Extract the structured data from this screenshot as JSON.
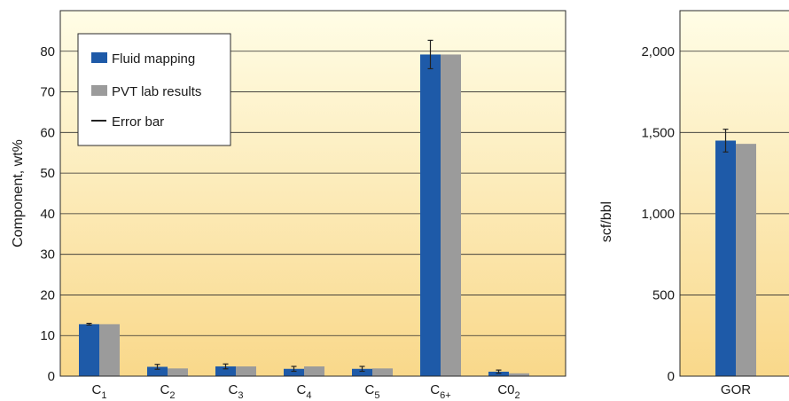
{
  "colors": {
    "fluid_mapping": "#1e5aa8",
    "pvt_lab": "#9b9b9b",
    "error_bar": "#222222",
    "bg_top": "#fffde6",
    "bg_bottom": "#f9d88a",
    "grid": "#2a2a2a"
  },
  "chart_data": [
    {
      "type": "bar",
      "ylabel": "Component, wt%",
      "ylim": [
        0,
        90
      ],
      "yticks": [
        "0",
        "10",
        "20",
        "30",
        "40",
        "50",
        "60",
        "70",
        "80"
      ],
      "ytick_values": [
        0,
        10,
        20,
        30,
        40,
        50,
        60,
        70,
        80
      ],
      "grid": true,
      "legend_position": "top-left",
      "categories": [
        {
          "base": "C",
          "sub": "1"
        },
        {
          "base": "C",
          "sub": "2"
        },
        {
          "base": "C",
          "sub": "3"
        },
        {
          "base": "C",
          "sub": "4"
        },
        {
          "base": "C",
          "sub": "5"
        },
        {
          "base": "C",
          "sub": "6+"
        },
        {
          "base": "C0",
          "sub": "2"
        }
      ],
      "series": [
        {
          "name": "Fluid mapping",
          "values": [
            12.8,
            2.3,
            2.4,
            1.8,
            1.8,
            79.2,
            1.1
          ],
          "error": [
            0.2,
            0.6,
            0.6,
            0.6,
            0.6,
            3.5,
            0.4
          ]
        },
        {
          "name": "PVT lab results",
          "values": [
            12.8,
            1.9,
            2.4,
            2.4,
            1.9,
            79.2,
            0.7
          ]
        }
      ],
      "legend": [
        "Fluid mapping",
        "PVT lab results",
        "Error bar"
      ]
    },
    {
      "type": "bar",
      "ylabel": "scf/bbl",
      "ylim": [
        0,
        2250
      ],
      "yticks": [
        "0",
        "500",
        "1,000",
        "1,500",
        "2,000"
      ],
      "ytick_values": [
        0,
        500,
        1000,
        1500,
        2000
      ],
      "grid": true,
      "categories": [
        {
          "base": "GOR",
          "sub": ""
        }
      ],
      "series": [
        {
          "name": "Fluid mapping",
          "values": [
            1450
          ],
          "error": [
            70
          ]
        },
        {
          "name": "PVT lab results",
          "values": [
            1430
          ]
        }
      ]
    }
  ]
}
